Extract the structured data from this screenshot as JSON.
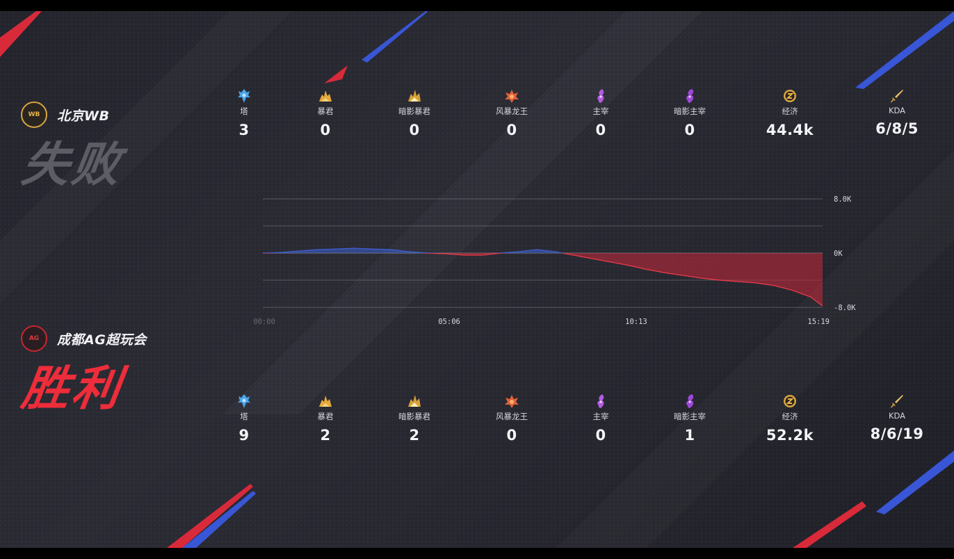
{
  "teams": {
    "top": {
      "name": "北京WB",
      "result": "失败",
      "logo_text": "WB",
      "color": "#d9a640",
      "stats": [
        {
          "icon": "tower-icon",
          "label": "塔",
          "value": "3"
        },
        {
          "icon": "tyrant-icon",
          "label": "暴君",
          "value": "0"
        },
        {
          "icon": "shadow-tyrant-icon",
          "label": "暗影暴君",
          "value": "0"
        },
        {
          "icon": "storm-dragon-icon",
          "label": "风暴龙王",
          "value": "0"
        },
        {
          "icon": "overlord-icon",
          "label": "主宰",
          "value": "0"
        },
        {
          "icon": "shadow-overlord-icon",
          "label": "暗影主宰",
          "value": "0"
        },
        {
          "icon": "gold-icon",
          "label": "经济",
          "value": "44.4k"
        },
        {
          "icon": "sword-icon",
          "label": "KDA",
          "value": "6/8/5"
        }
      ]
    },
    "bottom": {
      "name": "成都AG超玩会",
      "result": "胜利",
      "logo_text": "AG",
      "color": "#ee2d3a",
      "stats": [
        {
          "icon": "tower-icon",
          "label": "塔",
          "value": "9"
        },
        {
          "icon": "tyrant-icon",
          "label": "暴君",
          "value": "2"
        },
        {
          "icon": "shadow-tyrant-icon",
          "label": "暗影暴君",
          "value": "2"
        },
        {
          "icon": "storm-dragon-icon",
          "label": "风暴龙王",
          "value": "0"
        },
        {
          "icon": "overlord-icon",
          "label": "主宰",
          "value": "0"
        },
        {
          "icon": "shadow-overlord-icon",
          "label": "暗影主宰",
          "value": "1"
        },
        {
          "icon": "gold-icon",
          "label": "经济",
          "value": "52.2k"
        },
        {
          "icon": "sword-icon",
          "label": "KDA",
          "value": "8/6/19"
        }
      ]
    }
  },
  "chart_data": {
    "type": "area",
    "title": "",
    "xlabel": "",
    "ylabel": "",
    "x_ticks": [
      "00:00",
      "05:06",
      "10:13",
      "15:19"
    ],
    "y_ticks": [
      "8.0K",
      "0K",
      "-8.0K"
    ],
    "ylim": [
      -8000,
      8000
    ],
    "xlim_seconds": [
      0,
      919
    ],
    "grid": true,
    "positive_color": "#3d5fd0",
    "negative_color": "#c8283a",
    "series": [
      {
        "x_seconds": [
          0,
          30,
          60,
          90,
          120,
          150,
          180,
          210,
          240,
          270,
          300,
          330,
          360,
          390,
          420,
          450,
          480,
          510,
          540,
          570,
          600,
          630,
          660,
          690,
          720,
          750,
          780,
          810,
          840,
          870,
          900,
          919
        ],
        "values": [
          0,
          100,
          300,
          500,
          600,
          700,
          600,
          500,
          200,
          0,
          -100,
          -300,
          -300,
          0,
          200,
          500,
          200,
          -300,
          -800,
          -1300,
          -1800,
          -2400,
          -2900,
          -3300,
          -3700,
          -4000,
          -4200,
          -4400,
          -4800,
          -5500,
          -6500,
          -7800
        ]
      }
    ]
  }
}
